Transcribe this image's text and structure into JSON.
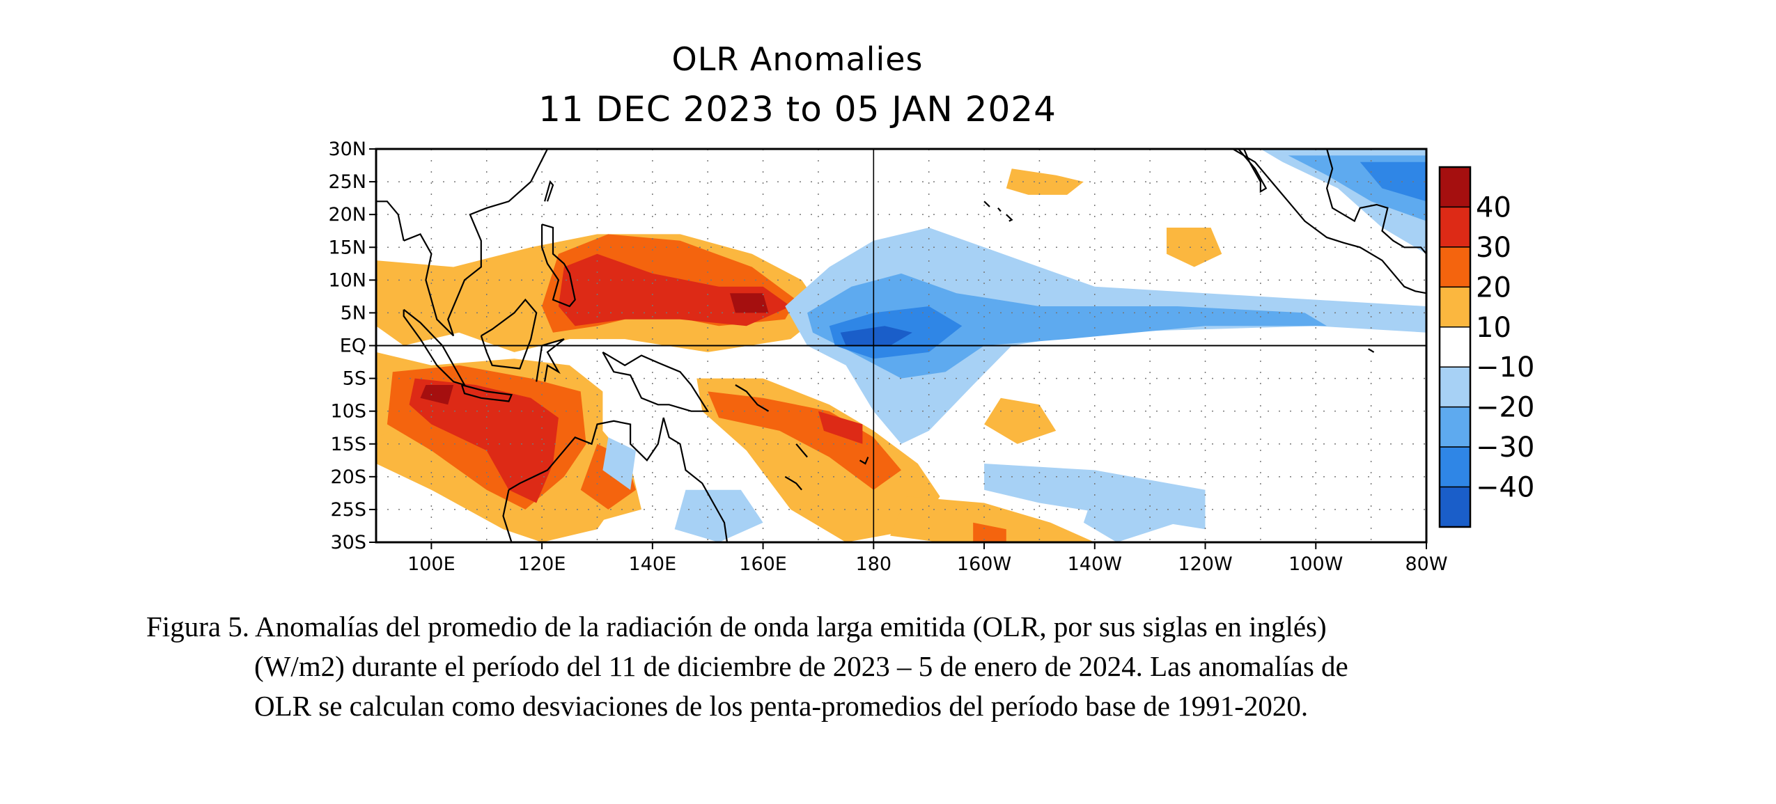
{
  "chart": {
    "title_line1": "OLR Anomalies",
    "title_line2": "11 DEC 2023 to 05 JAN 2024",
    "lat_labels": [
      "30N",
      "25N",
      "20N",
      "15N",
      "10N",
      "5N",
      "EQ",
      "5S",
      "10S",
      "15S",
      "20S",
      "25S",
      "30S"
    ],
    "lon_labels": [
      "100E",
      "120E",
      "140E",
      "160E",
      "180",
      "160W",
      "140W",
      "120W",
      "100W",
      "80W"
    ],
    "colorbar": {
      "labels": [
        "40",
        "30",
        "20",
        "10",
        "−10",
        "−20",
        "−30",
        "−40"
      ],
      "colors": [
        "#a50f0f",
        "#dd2a16",
        "#f4640e",
        "#fbb73f",
        "#ffffff",
        "#a7d1f5",
        "#5eaaef",
        "#2f86e6",
        "#1a5ec9"
      ]
    },
    "palette": {
      "pos10": "#fbb73f",
      "pos20": "#f4640e",
      "pos30": "#dd2a16",
      "pos40": "#a50f0f",
      "neg10": "#a7d1f5",
      "neg20": "#5eaaef",
      "neg30": "#2f86e6",
      "neg40": "#1a5ec9"
    }
  },
  "caption": {
    "line1": "Figura 5. Anomalías del promedio de la radiación de onda larga emitida (OLR, por sus siglas en inglés)",
    "line2": "(W/m2) durante el período del 11 de diciembre de 2023 – 5 de enero de 2024.  Las anomalías de",
    "line3": "OLR se calculan como desviaciones de los penta-promedios del período base de 1991-2020."
  }
}
